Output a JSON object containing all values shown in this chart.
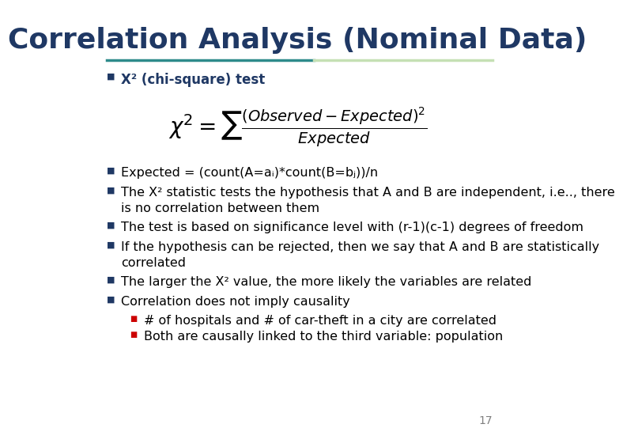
{
  "title": "Correlation Analysis (Nominal Data)",
  "title_color": "#1F3864",
  "title_fontsize": 26,
  "bg_color": "#FFFFFF",
  "bullet_color": "#1F3864",
  "sub_bullet_color": "#CC0000",
  "line_color_left": "#2E8B8B",
  "line_color_right": "#C5E0B4",
  "bullet1": "X² (chi-square) test",
  "bullet2": "Expected = (count(A=aᵢ)*count(B=bⱼ))/n",
  "bullet3a": "The X² statistic tests the hypothesis that A and B are independent, i.e.., there",
  "bullet3b": "is no correlation between them",
  "bullet4": "The test is based on significance level with (r-1)(c-1) degrees of freedom",
  "bullet5a": "If the hypothesis can be rejected, then we say that A and B are statistically",
  "bullet5b": "correlated",
  "bullet6": "The larger the X² value, the more likely the variables are related",
  "bullet7": "Correlation does not imply causality",
  "sub1": "# of hospitals and # of car-theft in a city are correlated",
  "sub2": "Both are causally linked to the third variable: population",
  "page_num": "17",
  "main_font_size": 11.5
}
